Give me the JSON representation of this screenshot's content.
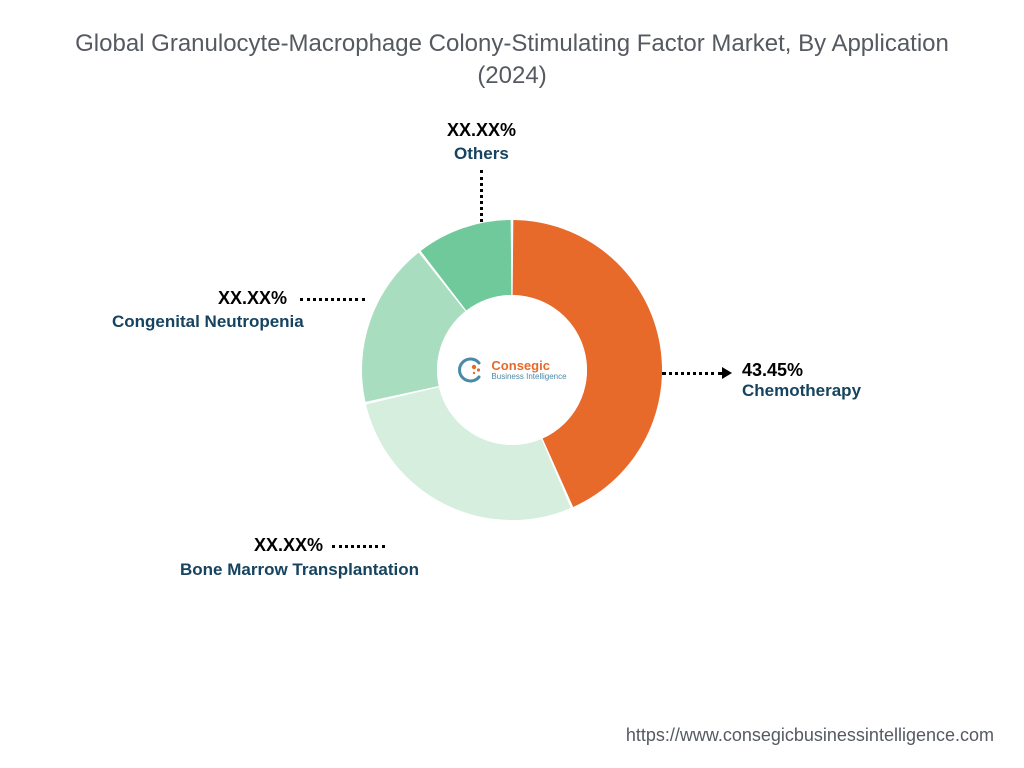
{
  "title": "Global Granulocyte-Macrophage Colony-Stimulating Factor Market, By Application (2024)",
  "chart": {
    "type": "donut",
    "outer_radius": 150,
    "inner_radius": 75,
    "background_color": "#ffffff",
    "slices": [
      {
        "key": "chemotherapy",
        "label": "Chemotherapy",
        "pct_label": "43.45%",
        "value": 43.45,
        "color": "#e76a2b"
      },
      {
        "key": "bmt",
        "label": "Bone Marrow Transplantation",
        "pct_label": "XX.XX%",
        "value": 28.0,
        "color": "#d5eede"
      },
      {
        "key": "cn",
        "label": "Congenital Neutropenia",
        "pct_label": "XX.XX%",
        "value": 18.0,
        "color": "#a9ddc0"
      },
      {
        "key": "others",
        "label": "Others",
        "pct_label": "XX.XX%",
        "value": 10.55,
        "color": "#6fc99a"
      }
    ],
    "slice_gap_deg": 1.0,
    "title_fontsize": 24,
    "title_color": "#555a60",
    "label_color": "#16435f",
    "pct_color": "#000000",
    "label_fontsize": 17,
    "pct_fontsize": 18
  },
  "center_logo": {
    "brand_line1": "Consegic",
    "brand_line2": "Business Intelligence",
    "mark_colors": {
      "arc": "#4a8aa6",
      "dots": "#e76a2b"
    }
  },
  "url": "https://www.consegicbusinessintelligence.com"
}
